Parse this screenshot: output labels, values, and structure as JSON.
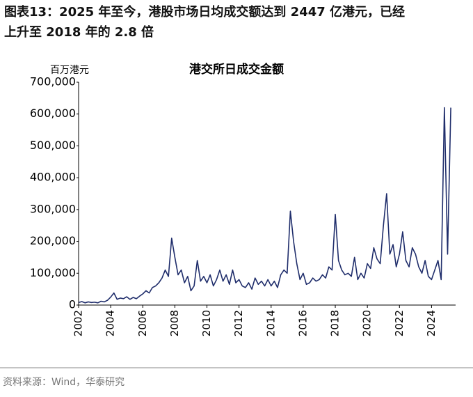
{
  "header": {
    "line1": "图表13：2025 年至今，港股市场日均成交额达到 2447 亿港元，已经",
    "line2": "上升至 2018 年的 2.8 倍"
  },
  "chart_data": {
    "type": "line",
    "title": "港交所日成交金额",
    "y_label": "百万港元",
    "x": [
      2002.0,
      2002.2,
      2002.4,
      2002.6,
      2002.8,
      2003.0,
      2003.2,
      2003.4,
      2003.6,
      2003.8,
      2004.0,
      2004.2,
      2004.4,
      2004.6,
      2004.8,
      2005.0,
      2005.2,
      2005.4,
      2005.6,
      2005.8,
      2006.0,
      2006.2,
      2006.4,
      2006.6,
      2006.8,
      2007.0,
      2007.2,
      2007.4,
      2007.6,
      2007.8,
      2008.0,
      2008.2,
      2008.4,
      2008.6,
      2008.8,
      2009.0,
      2009.2,
      2009.4,
      2009.6,
      2009.8,
      2010.0,
      2010.2,
      2010.4,
      2010.6,
      2010.8,
      2011.0,
      2011.2,
      2011.4,
      2011.6,
      2011.8,
      2012.0,
      2012.2,
      2012.4,
      2012.6,
      2012.8,
      2013.0,
      2013.2,
      2013.4,
      2013.6,
      2013.8,
      2014.0,
      2014.2,
      2014.4,
      2014.6,
      2014.8,
      2015.0,
      2015.2,
      2015.4,
      2015.6,
      2015.8,
      2016.0,
      2016.2,
      2016.4,
      2016.6,
      2016.8,
      2017.0,
      2017.2,
      2017.4,
      2017.6,
      2017.8,
      2018.0,
      2018.2,
      2018.4,
      2018.6,
      2018.8,
      2019.0,
      2019.2,
      2019.4,
      2019.6,
      2019.8,
      2020.0,
      2020.2,
      2020.4,
      2020.6,
      2020.8,
      2021.0,
      2021.2,
      2021.4,
      2021.6,
      2021.8,
      2022.0,
      2022.2,
      2022.4,
      2022.6,
      2022.8,
      2023.0,
      2023.2,
      2023.4,
      2023.6,
      2023.8,
      2024.0,
      2024.2,
      2024.4,
      2024.6,
      2024.8,
      2025.0,
      2025.2
    ],
    "series": [
      {
        "name": "港交所日成交金额",
        "color": "#1f2d6b",
        "values": [
          8000,
          11000,
          7000,
          10000,
          8000,
          9000,
          7000,
          12000,
          10000,
          15000,
          25000,
          38000,
          18000,
          22000,
          20000,
          26000,
          18000,
          24000,
          20000,
          28000,
          35000,
          45000,
          38000,
          55000,
          60000,
          70000,
          85000,
          110000,
          90000,
          210000,
          150000,
          95000,
          110000,
          70000,
          90000,
          45000,
          60000,
          140000,
          75000,
          90000,
          70000,
          95000,
          60000,
          80000,
          110000,
          75000,
          95000,
          65000,
          110000,
          70000,
          80000,
          60000,
          55000,
          70000,
          50000,
          85000,
          65000,
          75000,
          60000,
          80000,
          60000,
          75000,
          55000,
          95000,
          110000,
          100000,
          295000,
          200000,
          130000,
          80000,
          100000,
          65000,
          70000,
          85000,
          75000,
          80000,
          95000,
          85000,
          120000,
          110000,
          285000,
          140000,
          110000,
          95000,
          100000,
          90000,
          150000,
          80000,
          100000,
          85000,
          130000,
          115000,
          180000,
          145000,
          130000,
          250000,
          350000,
          160000,
          190000,
          120000,
          160000,
          230000,
          140000,
          120000,
          180000,
          160000,
          120000,
          100000,
          140000,
          90000,
          80000,
          110000,
          140000,
          80000,
          620000,
          160000,
          620000
        ]
      }
    ],
    "xlim": [
      2002,
      2025.5
    ],
    "xticks": [
      2002,
      2004,
      2006,
      2008,
      2010,
      2012,
      2014,
      2016,
      2018,
      2020,
      2022,
      2024
    ],
    "ylim": [
      0,
      700000
    ],
    "yticks": [
      0,
      {
        "value": 100000,
        "label": "100,000"
      },
      {
        "value": 200000,
        "label": "200,000"
      },
      {
        "value": 300000,
        "label": "300,000"
      },
      {
        "value": 400000,
        "label": "400,000"
      },
      {
        "value": 500000,
        "label": "500,000"
      },
      {
        "value": 600000,
        "label": "600,000"
      },
      {
        "value": 700000,
        "label": "700,000"
      }
    ]
  },
  "footer": {
    "source": "资料来源：Wind，华泰研究"
  }
}
